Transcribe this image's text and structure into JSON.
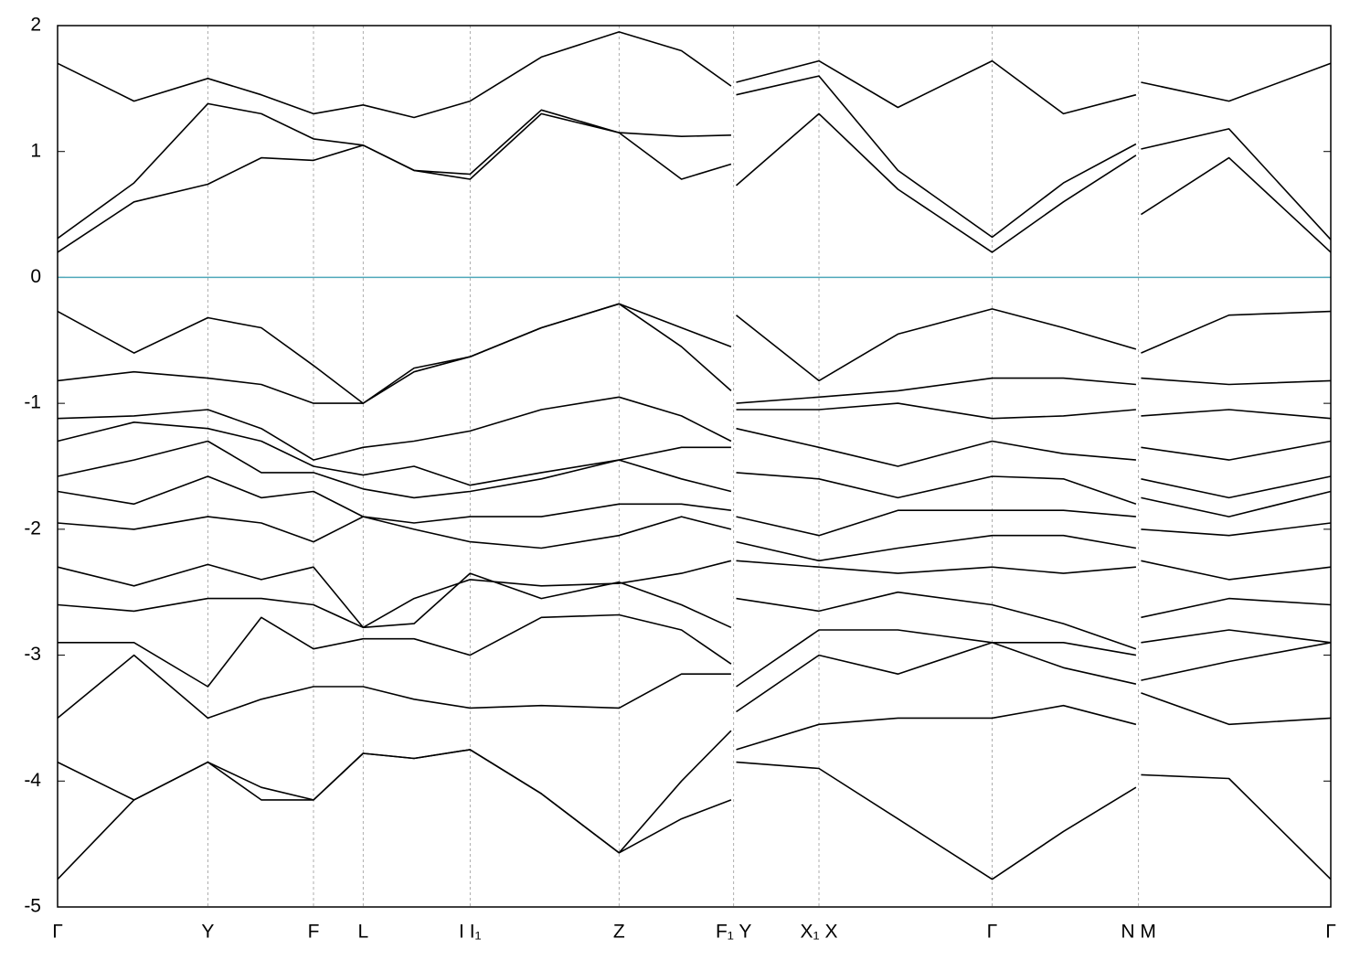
{
  "chart_data": {
    "type": "line",
    "color": "#000000",
    "zero_line": 0,
    "zero_line_color": "#4fa8ba",
    "grid_x": true,
    "xlim": [
      0,
      10
    ],
    "ylim": [
      -5,
      2
    ],
    "yticks": [
      -5,
      -4,
      -3,
      -2,
      -1,
      0,
      1,
      2
    ],
    "xticks": [
      {
        "value": 0,
        "label": "Γ"
      },
      {
        "value": 1.18,
        "label": "Y"
      },
      {
        "value": 2.01,
        "label": "F"
      },
      {
        "value": 2.4,
        "label": "L"
      },
      {
        "value": 3.24,
        "label": "I  I₁"
      },
      {
        "value": 4.41,
        "label": "Z"
      },
      {
        "value": 5.31,
        "label": "F₁ Y"
      },
      {
        "value": 5.98,
        "label": "X₁ X"
      },
      {
        "value": 7.34,
        "label": "Γ"
      },
      {
        "value": 8.49,
        "label": "N M"
      },
      {
        "value": 10,
        "label": "Γ"
      }
    ],
    "x": [
      0,
      0.6,
      1.18,
      1.6,
      2.01,
      2.4,
      2.8,
      3.24,
      3.8,
      4.41,
      4.9,
      5.29,
      5.31,
      5.33,
      5.98,
      6.6,
      7.34,
      7.9,
      8.47,
      8.49,
      8.51,
      9.2,
      10
    ],
    "series": [
      {
        "values": [
          0.2,
          0.6,
          0.74,
          0.95,
          0.93,
          1.05,
          0.85,
          0.78,
          1.3,
          1.15,
          0.78,
          0.9,
          null,
          0.73,
          1.3,
          0.7,
          0.2,
          0.6,
          0.97,
          null,
          0.5,
          0.95,
          0.2
        ]
      },
      {
        "values": [
          0.31,
          0.75,
          1.38,
          1.3,
          1.1,
          1.05,
          0.85,
          0.82,
          1.33,
          1.15,
          1.12,
          1.13,
          null,
          1.45,
          1.6,
          0.85,
          0.32,
          0.75,
          1.06,
          null,
          1.02,
          1.18,
          0.3
        ]
      },
      {
        "values": [
          1.7,
          1.4,
          1.58,
          1.45,
          1.3,
          1.37,
          1.27,
          1.4,
          1.75,
          1.95,
          1.8,
          1.52,
          null,
          1.55,
          1.72,
          1.35,
          1.72,
          1.3,
          1.45,
          null,
          1.55,
          1.4,
          1.7
        ]
      },
      {
        "values": [
          -0.27,
          -0.6,
          -0.32,
          -0.4,
          -0.7,
          -1.0,
          -0.72,
          -0.63,
          -0.4,
          -0.21,
          -0.4,
          -0.55,
          null,
          -0.3,
          -0.82,
          -0.45,
          -0.25,
          -0.4,
          -0.57,
          null,
          -0.6,
          -0.3,
          -0.27
        ]
      },
      {
        "values": [
          -0.82,
          -0.75,
          -0.8,
          -0.85,
          -1.0,
          -1.0,
          -0.75,
          -0.63,
          -0.4,
          -0.21,
          -0.55,
          -0.9,
          null,
          -1.0,
          -0.95,
          -0.9,
          -0.8,
          -0.8,
          -0.85,
          null,
          -0.8,
          -0.85,
          -0.82
        ]
      },
      {
        "values": [
          -1.12,
          -1.1,
          -1.05,
          -1.2,
          -1.45,
          -1.35,
          -1.3,
          -1.22,
          -1.05,
          -0.95,
          -1.1,
          -1.3,
          null,
          -1.05,
          -1.05,
          -1.0,
          -1.12,
          -1.1,
          -1.05,
          null,
          -1.1,
          -1.05,
          -1.12
        ]
      },
      {
        "values": [
          -1.3,
          -1.15,
          -1.2,
          -1.3,
          -1.5,
          -1.57,
          -1.5,
          -1.65,
          -1.55,
          -1.45,
          -1.35,
          -1.35,
          null,
          -1.2,
          -1.35,
          -1.5,
          -1.3,
          -1.4,
          -1.45,
          null,
          -1.35,
          -1.45,
          -1.3
        ]
      },
      {
        "values": [
          -1.58,
          -1.45,
          -1.3,
          -1.55,
          -1.55,
          -1.68,
          -1.75,
          -1.7,
          -1.6,
          -1.45,
          -1.6,
          -1.7,
          null,
          -1.55,
          -1.6,
          -1.75,
          -1.58,
          -1.6,
          -1.8,
          null,
          -1.6,
          -1.75,
          -1.58
        ]
      },
      {
        "values": [
          -1.7,
          -1.8,
          -1.58,
          -1.75,
          -1.7,
          -1.9,
          -1.95,
          -1.9,
          -1.9,
          -1.8,
          -1.8,
          -1.85,
          null,
          -1.9,
          -2.05,
          -1.85,
          -1.85,
          -1.85,
          -1.9,
          null,
          -1.75,
          -1.9,
          -1.7
        ]
      },
      {
        "values": [
          -1.95,
          -2.0,
          -1.9,
          -1.95,
          -2.1,
          -1.9,
          -2.0,
          -2.1,
          -2.15,
          -2.05,
          -1.9,
          -2.0,
          null,
          -2.1,
          -2.25,
          -2.15,
          -2.05,
          -2.05,
          -2.15,
          null,
          -2.0,
          -2.05,
          -1.95
        ]
      },
      {
        "values": [
          -2.3,
          -2.45,
          -2.28,
          -2.4,
          -2.3,
          -2.78,
          -2.55,
          -2.4,
          -2.45,
          -2.43,
          -2.35,
          -2.25,
          null,
          -2.25,
          -2.3,
          -2.35,
          -2.3,
          -2.35,
          -2.3,
          null,
          -2.25,
          -2.4,
          -2.3
        ]
      },
      {
        "values": [
          -2.6,
          -2.65,
          -2.55,
          -2.55,
          -2.6,
          -2.78,
          -2.75,
          -2.35,
          -2.55,
          -2.42,
          -2.6,
          -2.78,
          null,
          -2.55,
          -2.65,
          -2.5,
          -2.6,
          -2.75,
          -2.95,
          null,
          -2.7,
          -2.55,
          -2.6
        ]
      },
      {
        "values": [
          -2.9,
          -2.9,
          -3.25,
          -2.7,
          -2.95,
          -2.87,
          -2.87,
          -3.0,
          -2.7,
          -2.68,
          -2.8,
          -3.07,
          null,
          -3.25,
          -2.8,
          -2.8,
          -2.9,
          -2.9,
          -3.0,
          null,
          -2.9,
          -2.8,
          -2.9
        ]
      },
      {
        "values": [
          -3.5,
          -3.0,
          -3.5,
          -3.35,
          -3.25,
          -3.25,
          -3.35,
          -3.42,
          -3.4,
          -3.42,
          -3.15,
          -3.15,
          null,
          -3.45,
          -3.0,
          -3.15,
          -2.9,
          -3.1,
          -3.23,
          null,
          -3.2,
          -3.05,
          -2.9
        ]
      },
      {
        "values": [
          -3.85,
          -4.15,
          -3.85,
          -4.05,
          -4.15,
          -3.78,
          -3.82,
          -3.75,
          -4.1,
          -4.57,
          -4.0,
          -3.6,
          null,
          -3.75,
          -3.55,
          -3.5,
          -3.5,
          -3.4,
          -3.55,
          null,
          -3.3,
          -3.55,
          -3.5
        ]
      },
      {
        "values": [
          -4.78,
          -4.15,
          -3.85,
          -4.15,
          -4.15,
          -3.78,
          -3.82,
          -3.75,
          -4.1,
          -4.57,
          -4.3,
          -4.15,
          null,
          -3.85,
          -3.9,
          -4.3,
          -4.78,
          -4.4,
          -4.05,
          null,
          -3.95,
          -3.98,
          -4.78
        ]
      }
    ]
  }
}
